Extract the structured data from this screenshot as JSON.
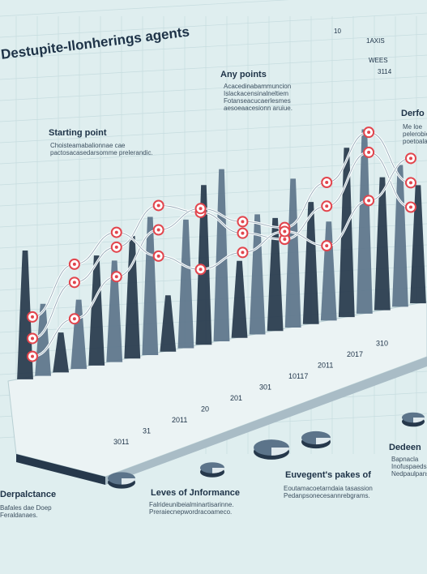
{
  "header": {
    "title": "Destupite-Ilonherings agents"
  },
  "legend": {
    "items": [
      "1AXIS",
      "WEES",
      "3114"
    ]
  },
  "annotations": {
    "starting_point_title": "Starting point",
    "starting_point_text": "Choisteamabalionnae cae pactosacasedarsomme prelerandic.",
    "any_points_title": "Any points",
    "any_points_text": "Acacedinabammuncion Islackacensinalneltiem Fotanseacucaerlesmes aesoeaacesionn aruiue.",
    "derfo_title": "Derfo",
    "derfo_text": "Me loe pelerobie poetoaladiers",
    "levels_title": "Leves of Jnformance",
    "levels_text": "Falrideunibeialminartisarinne. Preraiecnepwordracoameco.",
    "eveents_title": "Euvegent's pakes of",
    "eveents_text": "Eoutamacoetarndaia tasassion Pedanpsonecesannrebgrams.",
    "dedeen_title": "Dedeen",
    "dedeen_text": "Bapnacla Inofuspaeds Nedpaulpansca",
    "pale_title": "Derpalctance",
    "pale_text": "Bafales dae Doep Feraldanaes."
  },
  "chart_data": {
    "type": "line",
    "title": "Destupite-Ilonherings agents",
    "x_ticks": [
      "3011",
      "31",
      "2011",
      "20",
      "201",
      "301",
      "10117",
      "2011",
      "2017",
      "310"
    ],
    "y_ticks": [
      "10"
    ],
    "x": [
      1,
      2,
      3,
      4,
      5,
      6,
      7,
      8,
      9,
      10
    ],
    "series": [
      {
        "name": "",
        "values": [
          22,
          48,
          62,
          79,
          70,
          54,
          46,
          58,
          80,
          48
        ]
      },
      {
        "name": "",
        "values": [
          12,
          28,
          46,
          66,
          72,
          60,
          52,
          70,
          90,
          60
        ]
      },
      {
        "name": "",
        "values": [
          34,
          58,
          70,
          52,
          40,
          44,
          50,
          38,
          56,
          72
        ]
      }
    ],
    "bars": [
      72,
      40,
      22,
      38,
      60,
      55,
      66,
      74,
      30,
      68,
      84,
      90,
      40,
      62,
      58,
      76,
      62,
      50,
      85,
      92,
      66,
      70,
      58
    ],
    "ylim": [
      0,
      100
    ],
    "colors": {
      "line": "#ffffff",
      "marker": "#e2454d",
      "bar_dark": "#26384b",
      "bar_light": "#5c748a"
    }
  }
}
